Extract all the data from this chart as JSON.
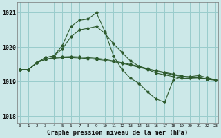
{
  "x": [
    0,
    1,
    2,
    3,
    4,
    5,
    6,
    7,
    8,
    9,
    10,
    11,
    12,
    13,
    14,
    15,
    16,
    17,
    18,
    19,
    20,
    21,
    22,
    23
  ],
  "line_sharp_peak": [
    1019.35,
    1019.35,
    1019.55,
    1019.7,
    1019.75,
    1020.05,
    1020.6,
    1020.78,
    1020.82,
    1021.0,
    1020.45,
    1019.75,
    1019.35,
    1019.1,
    1018.95,
    1018.7,
    1018.5,
    1018.4,
    1019.05,
    1019.15,
    1019.15,
    1019.18,
    1019.12,
    1019.05
  ],
  "line_moderate_peak": [
    1019.35,
    1019.35,
    1019.55,
    1019.7,
    1019.75,
    1019.95,
    1020.3,
    1020.5,
    1020.55,
    1020.6,
    1020.4,
    1020.1,
    1019.85,
    1019.6,
    1019.45,
    1019.35,
    1019.25,
    1019.2,
    1019.15,
    1019.1,
    1019.1,
    1019.12,
    1019.08,
    1019.05
  ],
  "line_flat1": [
    1019.35,
    1019.35,
    1019.55,
    1019.65,
    1019.7,
    1019.72,
    1019.73,
    1019.72,
    1019.7,
    1019.68,
    1019.65,
    1019.6,
    1019.55,
    1019.5,
    1019.45,
    1019.38,
    1019.32,
    1019.27,
    1019.22,
    1019.17,
    1019.13,
    1019.12,
    1019.08,
    1019.05
  ],
  "line_flat2": [
    1019.35,
    1019.35,
    1019.55,
    1019.65,
    1019.68,
    1019.7,
    1019.7,
    1019.69,
    1019.67,
    1019.65,
    1019.62,
    1019.58,
    1019.53,
    1019.48,
    1019.42,
    1019.36,
    1019.3,
    1019.25,
    1019.2,
    1019.15,
    1019.12,
    1019.11,
    1019.07,
    1019.04
  ],
  "bg_color": "#cce8e8",
  "grid_color": "#99cccc",
  "line_color": "#2d5a2d",
  "xlabel": "Graphe pression niveau de la mer (hPa)",
  "ylim": [
    1017.8,
    1021.3
  ],
  "yticks": [
    1018,
    1019,
    1020,
    1021
  ],
  "xtick_labels": [
    "0",
    "1",
    "2",
    "3",
    "4",
    "5",
    "6",
    "7",
    "8",
    "9",
    "10",
    "11",
    "12",
    "13",
    "14",
    "15",
    "16",
    "17",
    "18",
    "19",
    "20",
    "21",
    "22",
    "23"
  ]
}
